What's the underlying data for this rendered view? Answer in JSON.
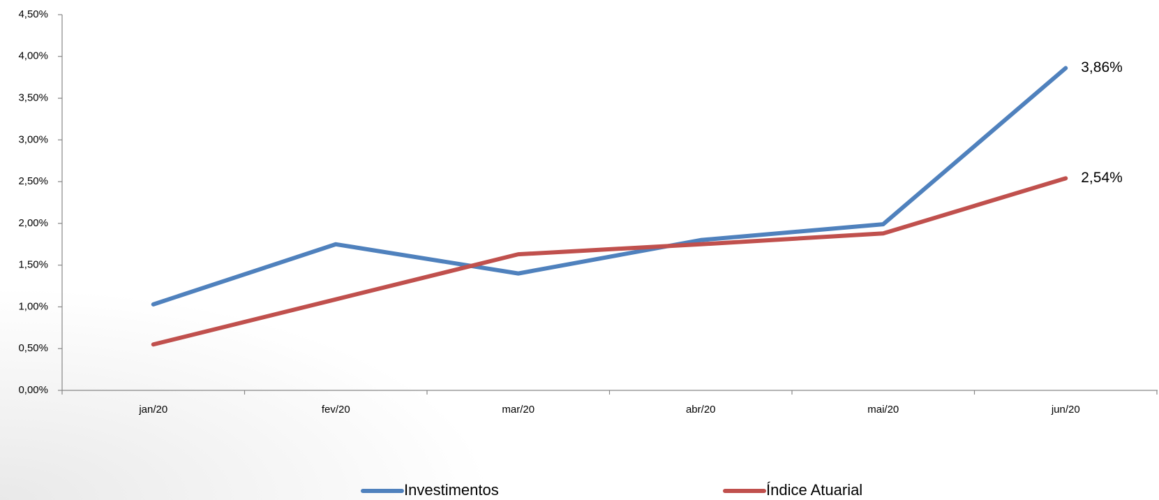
{
  "chart_data": {
    "type": "line",
    "categories": [
      "jan/20",
      "fev/20",
      "mar/20",
      "abr/20",
      "mai/20",
      "jun/20"
    ],
    "series": [
      {
        "name": "Investimentos",
        "color": "#4f81bd",
        "values": [
          1.03,
          1.75,
          1.4,
          1.8,
          1.99,
          3.86
        ],
        "value_labels": [
          null,
          null,
          null,
          null,
          null,
          "3,86%"
        ]
      },
      {
        "name": "Índice Atuarial",
        "color": "#c0504d",
        "values": [
          0.55,
          1.09,
          1.63,
          1.75,
          1.88,
          2.54
        ],
        "value_labels": [
          null,
          null,
          null,
          null,
          null,
          "2,54%"
        ]
      }
    ],
    "ylim": [
      0,
      4.5
    ],
    "yticks": [
      {
        "value": 0,
        "label": "0,00%"
      },
      {
        "value": 0.5,
        "label": "0,50%"
      },
      {
        "value": 1,
        "label": "1,00%"
      },
      {
        "value": 1.5,
        "label": "1,50%"
      },
      {
        "value": 2,
        "label": "2,00%"
      },
      {
        "value": 2.5,
        "label": "2,50%"
      },
      {
        "value": 3,
        "label": "3,00%"
      },
      {
        "value": 3.5,
        "label": "3,50%"
      },
      {
        "value": 4,
        "label": "4,00%"
      },
      {
        "value": 4.5,
        "label": "4,50%"
      }
    ],
    "legend": "bottom"
  }
}
